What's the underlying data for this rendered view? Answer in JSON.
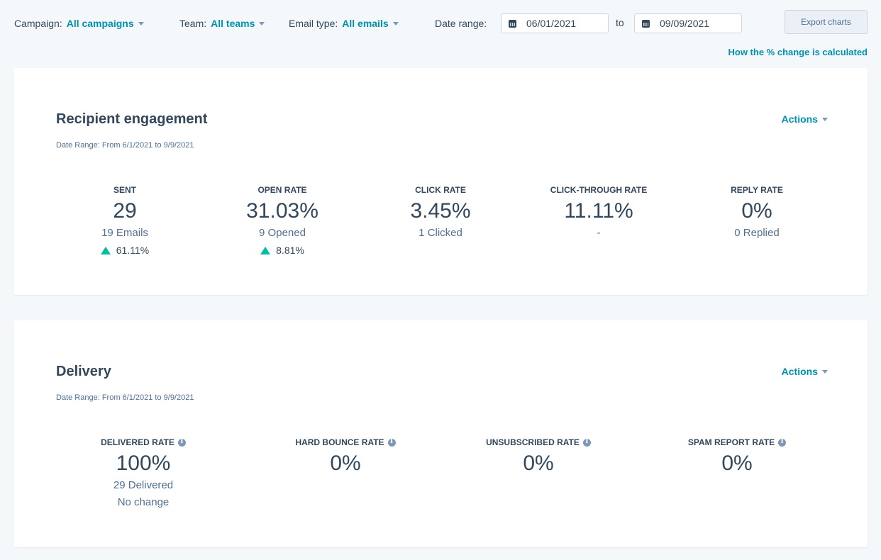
{
  "filters": {
    "campaign": {
      "label": "Campaign:",
      "value": "All campaigns"
    },
    "team": {
      "label": "Team:",
      "value": "All teams"
    },
    "email_type": {
      "label": "Email type:",
      "value": "All emails"
    },
    "date_range": {
      "label": "Date range:",
      "start": "06/01/2021",
      "to": "to",
      "end": "09/09/2021"
    },
    "export_label": "Export charts",
    "how_link": "How the % change is calculated"
  },
  "engagement": {
    "title": "Recipient engagement",
    "date_range": "Date Range: From 6/1/2021 to 9/9/2021",
    "actions": "Actions",
    "metrics": [
      {
        "label": "SENT",
        "value": "29",
        "sub": "19 Emails",
        "change": "61.11%"
      },
      {
        "label": "OPEN RATE",
        "value": "31.03%",
        "sub": "9 Opened",
        "change": "8.81%"
      },
      {
        "label": "CLICK RATE",
        "value": "3.45%",
        "sub": "1 Clicked"
      },
      {
        "label": "CLICK-THROUGH RATE",
        "value": "11.11%",
        "sub": "-"
      },
      {
        "label": "REPLY RATE",
        "value": "0%",
        "sub": "0 Replied"
      }
    ]
  },
  "delivery": {
    "title": "Delivery",
    "date_range": "Date Range: From 6/1/2021 to 9/9/2021",
    "actions": "Actions",
    "metrics": [
      {
        "label": "DELIVERED RATE",
        "value": "100%",
        "sub": "29 Delivered",
        "change": "No change"
      },
      {
        "label": "HARD BOUNCE RATE",
        "value": "0%"
      },
      {
        "label": "UNSUBSCRIBED RATE",
        "value": "0%"
      },
      {
        "label": "SPAM REPORT RATE",
        "value": "0%"
      }
    ]
  },
  "colors": {
    "accent": "#0091ae",
    "positive": "#00bda5",
    "text": "#33475b",
    "background": "#f5f8fa"
  }
}
